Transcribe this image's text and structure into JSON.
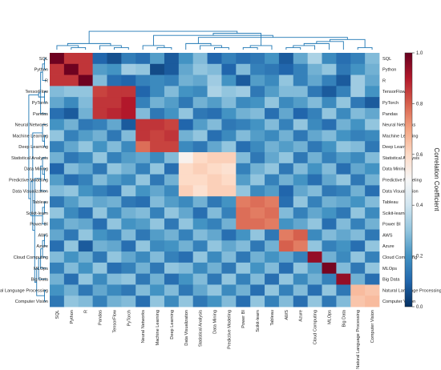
{
  "chart_data": {
    "type": "heatmap",
    "title": "",
    "xlabel": "",
    "ylabel": "",
    "rows": [
      "SQL",
      "Python",
      "R",
      "TensorFlow",
      "PyTorch",
      "Pandas",
      "Neural Networks",
      "Machine Learning",
      "Deep Learning",
      "Statistical Analysis",
      "Data Mining",
      "Predictive Modeling",
      "Data Visualization",
      "Tableau",
      "Scikit-learn",
      "Power BI",
      "AWS",
      "Azure",
      "Cloud Computing",
      "MLOps",
      "Big Data",
      "Natural Language Processing",
      "Computer Vision"
    ],
    "columns": [
      "SQL",
      "Python",
      "R",
      "Pandas",
      "TensorFlow",
      "PyTorch",
      "Neural Networks",
      "Machine Learning",
      "Deep Learning",
      "Data Visualization",
      "Statistical Analysis",
      "Data Mining",
      "Predictive Modeling",
      "Power BI",
      "Scikit-learn",
      "Tableau",
      "AWS",
      "Azure",
      "Cloud Computing",
      "MLOps",
      "Big Data",
      "Natural Language Processing",
      "Computer Vision"
    ],
    "values": [
      [
        0.99,
        0.86,
        0.86,
        0.1,
        0.06,
        0.15,
        0.12,
        0.22,
        0.08,
        0.2,
        0.28,
        0.1,
        0.16,
        0.12,
        0.14,
        0.2,
        0.08,
        0.24,
        0.34,
        0.18,
        0.12,
        0.16,
        0.28
      ],
      [
        0.86,
        0.99,
        0.86,
        0.22,
        0.2,
        0.32,
        0.3,
        0.05,
        0.08,
        0.24,
        0.3,
        0.28,
        0.1,
        0.28,
        0.16,
        0.14,
        0.1,
        0.16,
        0.26,
        0.3,
        0.14,
        0.2,
        0.26
      ],
      [
        0.86,
        0.86,
        0.99,
        0.28,
        0.12,
        0.1,
        0.16,
        0.18,
        0.16,
        0.26,
        0.24,
        0.32,
        0.2,
        0.08,
        0.22,
        0.18,
        0.3,
        0.16,
        0.24,
        0.16,
        0.08,
        0.32,
        0.24
      ],
      [
        0.28,
        0.3,
        0.3,
        0.84,
        0.86,
        0.86,
        0.1,
        0.18,
        0.28,
        0.2,
        0.18,
        0.34,
        0.3,
        0.32,
        0.14,
        0.22,
        0.28,
        0.28,
        0.14,
        0.08,
        0.16,
        0.32,
        0.2
      ],
      [
        0.24,
        0.18,
        0.28,
        0.86,
        0.86,
        0.9,
        0.16,
        0.26,
        0.22,
        0.14,
        0.26,
        0.22,
        0.28,
        0.18,
        0.2,
        0.3,
        0.18,
        0.22,
        0.28,
        0.18,
        0.3,
        0.14,
        0.08
      ],
      [
        0.12,
        0.08,
        0.26,
        0.86,
        0.88,
        0.9,
        0.28,
        0.14,
        0.2,
        0.3,
        0.14,
        0.12,
        0.2,
        0.26,
        0.28,
        0.12,
        0.24,
        0.1,
        0.16,
        0.3,
        0.18,
        0.28,
        0.24
      ],
      [
        0.2,
        0.26,
        0.14,
        0.16,
        0.24,
        0.08,
        0.86,
        0.86,
        0.84,
        0.1,
        0.22,
        0.28,
        0.14,
        0.16,
        0.2,
        0.28,
        0.16,
        0.3,
        0.18,
        0.12,
        0.26,
        0.2,
        0.3
      ],
      [
        0.3,
        0.16,
        0.22,
        0.26,
        0.14,
        0.28,
        0.86,
        0.84,
        0.86,
        0.26,
        0.3,
        0.12,
        0.18,
        0.28,
        0.22,
        0.18,
        0.26,
        0.14,
        0.24,
        0.28,
        0.2,
        0.16,
        0.18
      ],
      [
        0.16,
        0.24,
        0.3,
        0.2,
        0.28,
        0.18,
        0.78,
        0.84,
        0.84,
        0.18,
        0.14,
        0.24,
        0.3,
        0.12,
        0.18,
        0.26,
        0.22,
        0.26,
        0.14,
        0.2,
        0.3,
        0.28,
        0.14
      ],
      [
        0.26,
        0.14,
        0.18,
        0.3,
        0.16,
        0.22,
        0.24,
        0.18,
        0.28,
        0.52,
        0.6,
        0.62,
        0.62,
        0.28,
        0.14,
        0.24,
        0.3,
        0.14,
        0.26,
        0.16,
        0.22,
        0.18,
        0.28
      ],
      [
        0.1,
        0.28,
        0.24,
        0.14,
        0.3,
        0.26,
        0.16,
        0.3,
        0.12,
        0.6,
        0.62,
        0.6,
        0.58,
        0.16,
        0.26,
        0.3,
        0.14,
        0.28,
        0.2,
        0.28,
        0.12,
        0.24,
        0.2
      ],
      [
        0.22,
        0.12,
        0.16,
        0.28,
        0.22,
        0.18,
        0.3,
        0.14,
        0.26,
        0.6,
        0.6,
        0.62,
        0.6,
        0.22,
        0.3,
        0.16,
        0.26,
        0.2,
        0.12,
        0.24,
        0.3,
        0.14,
        0.26
      ],
      [
        0.28,
        0.3,
        0.2,
        0.16,
        0.12,
        0.3,
        0.2,
        0.24,
        0.18,
        0.62,
        0.58,
        0.62,
        0.62,
        0.3,
        0.18,
        0.22,
        0.1,
        0.24,
        0.28,
        0.14,
        0.16,
        0.26,
        0.12
      ],
      [
        0.14,
        0.22,
        0.28,
        0.24,
        0.26,
        0.14,
        0.12,
        0.28,
        0.22,
        0.18,
        0.26,
        0.14,
        0.2,
        0.76,
        0.78,
        0.76,
        0.12,
        0.3,
        0.16,
        0.26,
        0.24,
        0.2,
        0.28
      ],
      [
        0.3,
        0.18,
        0.12,
        0.3,
        0.18,
        0.26,
        0.28,
        0.16,
        0.3,
        0.24,
        0.12,
        0.28,
        0.16,
        0.78,
        0.76,
        0.78,
        0.28,
        0.16,
        0.24,
        0.2,
        0.14,
        0.3,
        0.18
      ],
      [
        0.18,
        0.26,
        0.24,
        0.12,
        0.3,
        0.2,
        0.22,
        0.3,
        0.14,
        0.3,
        0.2,
        0.16,
        0.26,
        0.78,
        0.78,
        0.76,
        0.2,
        0.24,
        0.3,
        0.12,
        0.28,
        0.16,
        0.26
      ],
      [
        0.24,
        0.14,
        0.3,
        0.2,
        0.16,
        0.28,
        0.14,
        0.22,
        0.26,
        0.16,
        0.28,
        0.24,
        0.12,
        0.2,
        0.3,
        0.14,
        0.76,
        0.8,
        0.18,
        0.28,
        0.24,
        0.28,
        0.14
      ],
      [
        0.12,
        0.3,
        0.08,
        0.26,
        0.24,
        0.12,
        0.3,
        0.18,
        0.2,
        0.26,
        0.16,
        0.3,
        0.24,
        0.28,
        0.14,
        0.26,
        0.8,
        0.76,
        0.3,
        0.16,
        0.2,
        0.12,
        0.3
      ],
      [
        0.28,
        0.2,
        0.26,
        0.14,
        0.3,
        0.24,
        0.18,
        0.28,
        0.16,
        0.12,
        0.3,
        0.18,
        0.28,
        0.14,
        0.26,
        0.2,
        0.24,
        0.16,
        0.94,
        0.26,
        0.18,
        0.3,
        0.16
      ],
      [
        0.16,
        0.28,
        0.2,
        0.3,
        0.12,
        0.16,
        0.26,
        0.14,
        0.3,
        0.28,
        0.18,
        0.26,
        0.14,
        0.3,
        0.2,
        0.28,
        0.12,
        0.3,
        0.22,
        0.98,
        0.28,
        0.14,
        0.3
      ],
      [
        0.26,
        0.12,
        0.3,
        0.18,
        0.28,
        0.3,
        0.14,
        0.26,
        0.12,
        0.2,
        0.28,
        0.14,
        0.3,
        0.16,
        0.28,
        0.12,
        0.3,
        0.18,
        0.26,
        0.16,
        0.94,
        0.26,
        0.12
      ],
      [
        0.2,
        0.26,
        0.14,
        0.24,
        0.18,
        0.14,
        0.28,
        0.2,
        0.28,
        0.14,
        0.24,
        0.3,
        0.18,
        0.26,
        0.12,
        0.3,
        0.16,
        0.28,
        0.12,
        0.3,
        0.14,
        0.66,
        0.64
      ],
      [
        0.14,
        0.3,
        0.28,
        0.16,
        0.26,
        0.28,
        0.12,
        0.3,
        0.18,
        0.3,
        0.14,
        0.2,
        0.28,
        0.12,
        0.3,
        0.16,
        0.28,
        0.12,
        0.3,
        0.14,
        0.28,
        0.64,
        0.66
      ]
    ],
    "colorbar": {
      "label": "Correlation Coefficient",
      "range": [
        0,
        1
      ],
      "ticks": [
        "0.0",
        "0.2",
        "0.4",
        "0.6",
        "0.8",
        "1.0"
      ]
    },
    "colormap": [
      "#053061",
      "#2166ac",
      "#4393c3",
      "#92c5de",
      "#d1e5f0",
      "#f7f7f7",
      "#fddbc7",
      "#f4a582",
      "#d6604d",
      "#b2182b",
      "#67001f"
    ],
    "dendrogram_color": "#1f77b4",
    "row_dendrogram": [
      [
        0,
        1
      ],
      [
        23,
        2
      ],
      [
        24,
        5
      ],
      [
        4,
        3
      ],
      [
        26,
        25
      ],
      [
        7,
        8
      ],
      [
        28,
        6
      ],
      [
        10,
        11
      ],
      [
        30,
        9
      ],
      [
        31,
        12
      ],
      [
        14,
        13
      ],
      [
        33,
        15
      ],
      [
        17,
        16
      ],
      [
        35,
        18
      ],
      [
        36,
        19
      ],
      [
        37,
        20
      ],
      [
        22,
        21
      ],
      [
        38,
        39
      ],
      [
        32,
        40
      ],
      [
        29,
        41
      ],
      [
        34,
        42
      ],
      [
        27,
        43
      ]
    ],
    "column_dendrogram": [
      [
        1,
        2
      ],
      [
        0,
        23
      ],
      [
        4,
        5
      ],
      [
        3,
        25
      ],
      [
        24,
        26
      ],
      [
        7,
        8
      ],
      [
        6,
        28
      ],
      [
        11,
        12
      ],
      [
        10,
        30
      ],
      [
        9,
        31
      ],
      [
        13,
        14
      ],
      [
        15,
        33
      ],
      [
        16,
        17
      ],
      [
        35,
        18
      ],
      [
        36,
        19
      ],
      [
        37,
        20
      ],
      [
        21,
        22
      ],
      [
        38,
        39
      ],
      [
        32,
        40
      ],
      [
        29,
        41
      ],
      [
        34,
        42
      ],
      [
        27,
        43
      ]
    ]
  }
}
